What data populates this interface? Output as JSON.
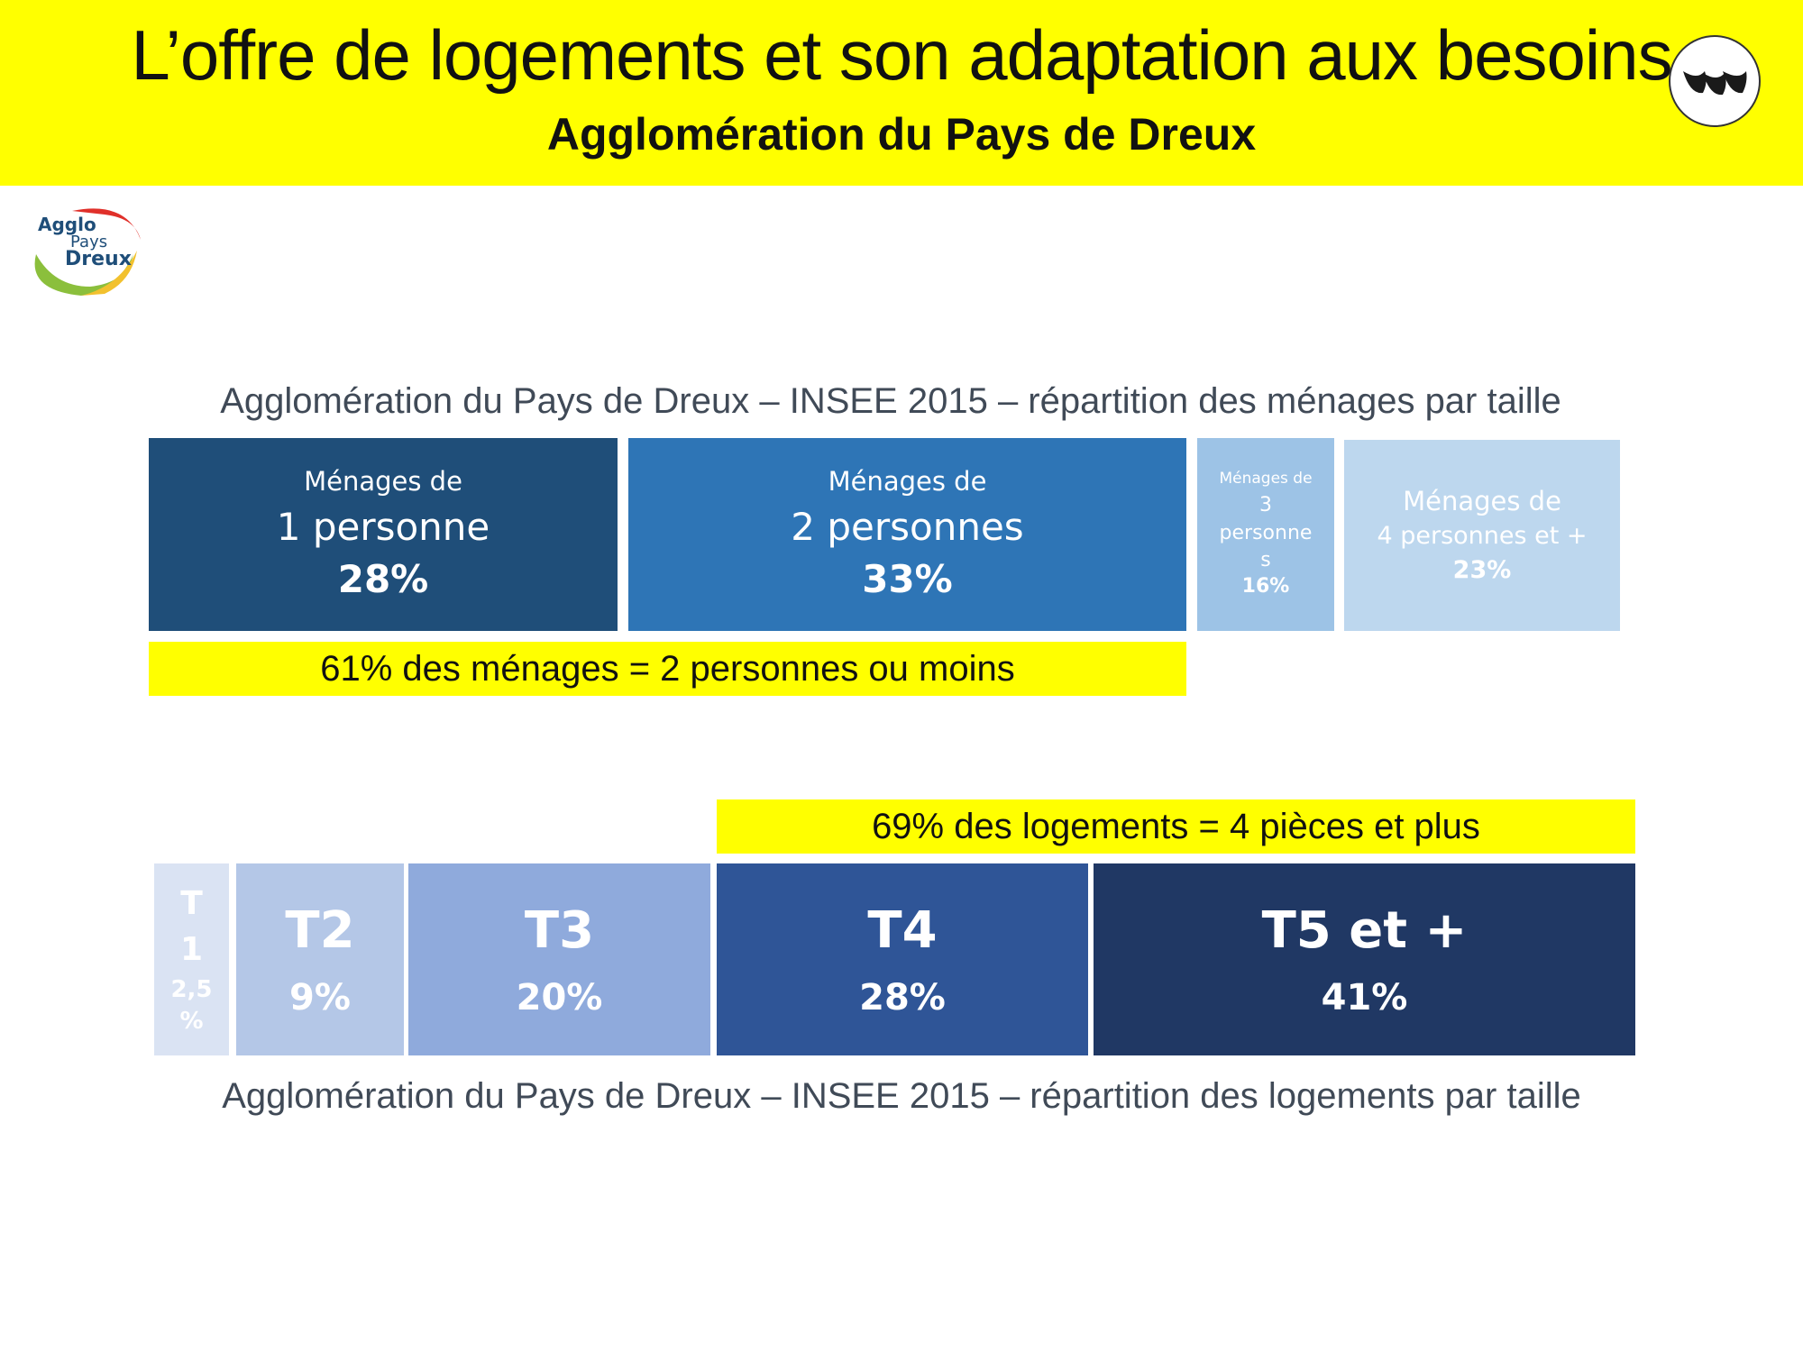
{
  "header": {
    "title": "L’offre de logements et son adaptation aux besoins",
    "subtitle": "Agglomération du Pays de Dreux",
    "background": "#ffff00"
  },
  "logo": {
    "alt_name": "Agglo Pays de Dreux logo",
    "lines": [
      "Agglo",
      "Pays",
      "Dreux"
    ]
  },
  "badge": {
    "icon": "brand-badge-icon"
  },
  "households": {
    "caption": "Agglomération du Pays de Dreux – INSEE 2015 – répartition des ménages par taille",
    "blocks": [
      {
        "line1": "Ménages de",
        "line2": "1 personne",
        "pct": "28%",
        "color": "#1f4e79"
      },
      {
        "line1": "Ménages de",
        "line2": "2 personnes",
        "pct": "33%",
        "color": "#2e75b6"
      },
      {
        "line1": "Ménages de",
        "line2": "3",
        "line3": "personne",
        "line4": "s",
        "pct": "16%",
        "color": "#9dc3e6"
      },
      {
        "line1": "Ménages de",
        "line2": "4 personnes et +",
        "pct": "23%",
        "color": "#bdd7ee"
      }
    ],
    "highlight": "61% des ménages = 2 personnes ou moins"
  },
  "dwellings": {
    "highlight": "69% des logements = 4 pièces et plus",
    "caption": "Agglomération du Pays de Dreux – INSEE 2015 – répartition des logements par taille",
    "blocks": [
      {
        "line1": "T",
        "line2": "1",
        "pct": "2,5",
        "pct2": "%",
        "color": "#dae3f3"
      },
      {
        "label": "T2",
        "pct": "9%",
        "color": "#b4c7e7"
      },
      {
        "label": "T3",
        "pct": "20%",
        "color": "#8faadc"
      },
      {
        "label": "T4",
        "pct": "28%",
        "color": "#2f5597"
      },
      {
        "label": "T5 et +",
        "pct": "41%",
        "color": "#203864"
      }
    ]
  }
}
